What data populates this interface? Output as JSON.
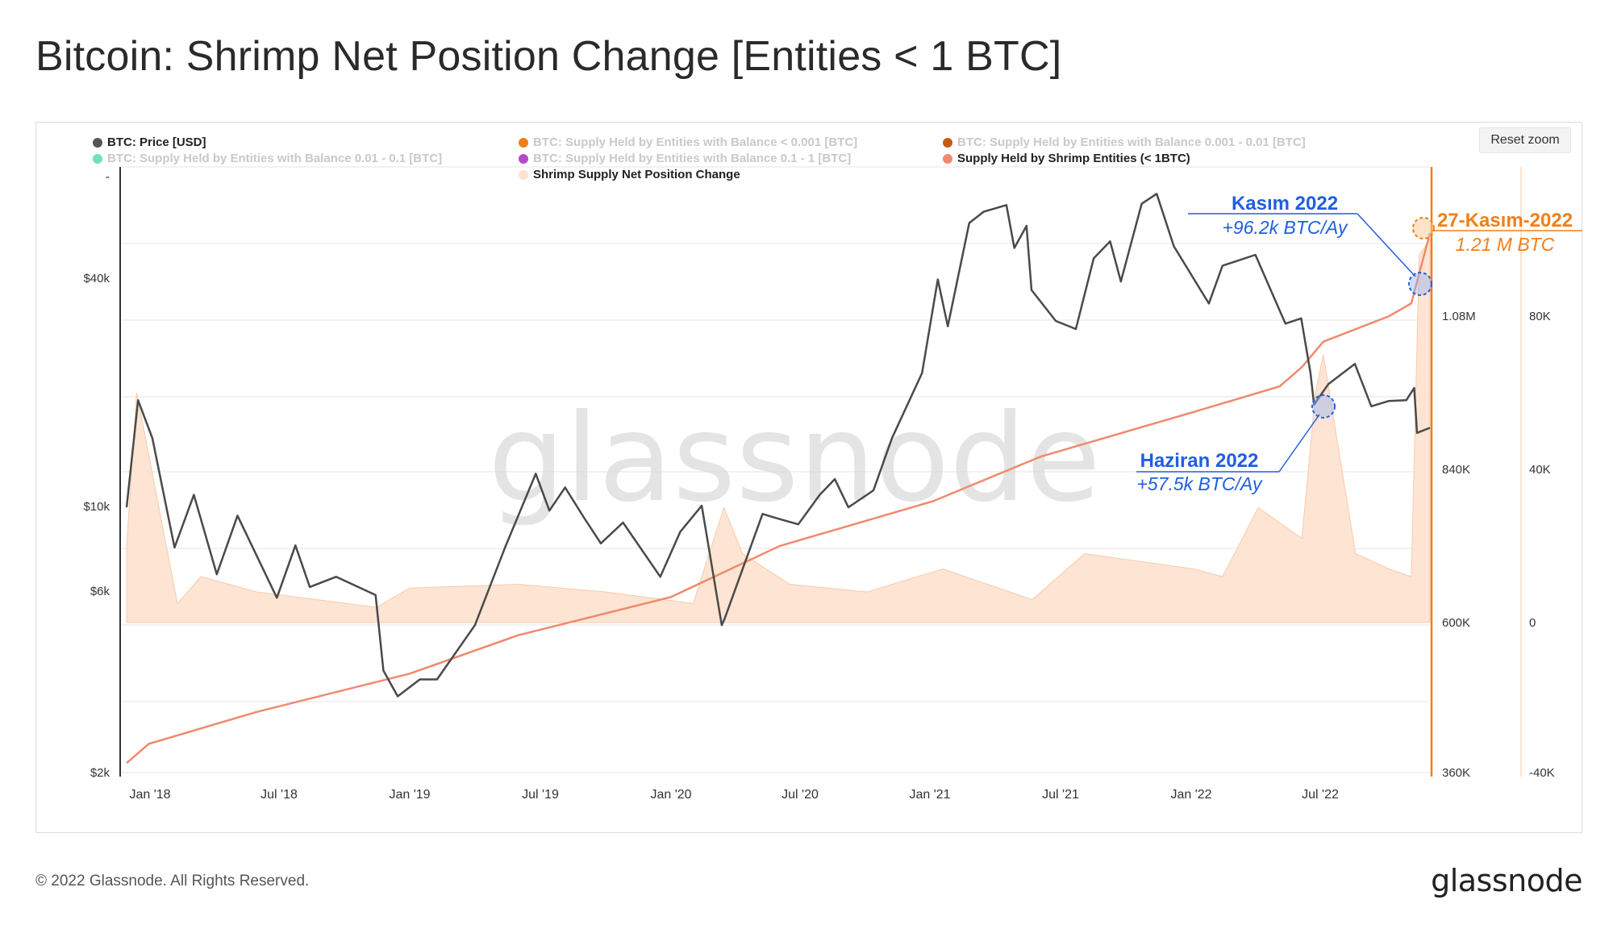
{
  "title": "Bitcoin: Shrimp Net Position Change [Entities < 1 BTC]",
  "footer": {
    "copyright": "© 2022 Glassnode. All Rights Reserved.",
    "logo": "glassnode"
  },
  "watermark": "glassnode",
  "reset_zoom_label": "Reset zoom",
  "legend": [
    {
      "label": "BTC: Price [USD]",
      "color": "#555555",
      "active": true
    },
    {
      "label": "BTC: Supply Held by Entities with Balance < 0.001 [BTC]",
      "color": "#f07f1a",
      "active": false
    },
    {
      "label": "BTC: Supply Held by Entities with Balance 0.001 - 0.01 [BTC]",
      "color": "#c75b12",
      "active": false
    },
    {
      "label": "BTC: Supply Held by Entities with Balance 0.01 - 0.1 [BTC]",
      "color": "#6fe0c3",
      "active": false
    },
    {
      "label": "BTC: Supply Held by Entities with Balance 0.1 - 1 [BTC]",
      "color": "#b44ac9",
      "active": false
    },
    {
      "label": "Supply Held by Shrimp Entities (< 1BTC)",
      "color": "#f08a6e",
      "active": true
    },
    {
      "label": "Shrimp Supply Net Position Change",
      "color": "#fde2cf",
      "active": true
    }
  ],
  "annotations": {
    "kasim": {
      "title": "Kasım 2022",
      "value": "+96.2k BTC/Ay",
      "color": "#1f5fe0"
    },
    "haziran": {
      "title": "Haziran 2022",
      "value": "+57.5k BTC/Ay",
      "color": "#1f5fe0"
    },
    "end": {
      "title": "27-Kasım-2022",
      "value": "1.21 M BTC",
      "color": "#f07f1a"
    }
  },
  "chart_data": {
    "type": "line",
    "x_ticks": [
      "Jan '18",
      "Jul '18",
      "Jan '19",
      "Jul '19",
      "Jan '20",
      "Jul '20",
      "Jan '21",
      "Jul '21",
      "Jan '22",
      "Jul '22"
    ],
    "price_axis": {
      "scale": "log",
      "ticks": [
        "$2k",
        "$6k",
        "$10k",
        "$40k"
      ],
      "tick_values": [
        2000,
        6000,
        10000,
        40000
      ],
      "top_label": "-"
    },
    "supply_axis": {
      "ticks": [
        "360K",
        "600K",
        "840K",
        "1.08M"
      ],
      "tick_values": [
        360000,
        600000,
        840000,
        1080000
      ]
    },
    "change_axis": {
      "ticks": [
        "-40K",
        "0",
        "40K",
        "80K"
      ],
      "tick_values": [
        -40000,
        0,
        40000,
        80000
      ]
    },
    "series": [
      {
        "name": "BTC: Price [USD]",
        "color": "#4a4a4a",
        "axis": "price",
        "x": [
          "2017-12-01",
          "2017-12-17",
          "2018-01-06",
          "2018-02-06",
          "2018-03-05",
          "2018-04-06",
          "2018-05-05",
          "2018-06-29",
          "2018-07-25",
          "2018-08-14",
          "2018-09-20",
          "2018-11-14",
          "2018-11-25",
          "2018-12-15",
          "2019-01-15",
          "2019-02-08",
          "2019-04-02",
          "2019-05-14",
          "2019-06-26",
          "2019-07-15",
          "2019-08-06",
          "2019-09-01",
          "2019-09-25",
          "2019-10-26",
          "2019-12-17",
          "2020-01-14",
          "2020-02-13",
          "2020-03-12",
          "2020-03-16",
          "2020-04-29",
          "2020-05-08",
          "2020-06-01",
          "2020-06-27",
          "2020-07-27",
          "2020-08-17",
          "2020-09-05",
          "2020-10-10",
          "2020-11-05",
          "2020-12-17",
          "2021-01-08",
          "2021-01-22",
          "2021-02-21",
          "2021-03-13",
          "2021-04-14",
          "2021-04-25",
          "2021-05-12",
          "2021-05-19",
          "2021-06-22",
          "2021-07-20",
          "2021-08-14",
          "2021-09-06",
          "2021-09-21",
          "2021-10-20",
          "2021-11-10",
          "2021-12-04",
          "2022-01-22",
          "2022-02-10",
          "2022-03-28",
          "2022-05-09",
          "2022-05-31",
          "2022-06-13",
          "2022-06-18",
          "2022-07-08",
          "2022-08-14",
          "2022-09-06",
          "2022-09-30",
          "2022-10-25",
          "2022-11-05",
          "2022-11-09",
          "2022-11-27"
        ],
        "values": [
          10200,
          19500,
          15500,
          8000,
          11000,
          6800,
          9700,
          5900,
          8100,
          6300,
          6700,
          6000,
          3800,
          3250,
          3600,
          3600,
          5000,
          8000,
          12500,
          10000,
          11500,
          9600,
          8200,
          9300,
          6700,
          8800,
          10300,
          5000,
          5200,
          8800,
          9800,
          9500,
          9200,
          11000,
          12100,
          10200,
          11300,
          15500,
          23000,
          40500,
          30500,
          57000,
          61000,
          63500,
          49000,
          56000,
          38000,
          31500,
          30000,
          46000,
          51000,
          40000,
          64000,
          68000,
          49500,
          35000,
          44000,
          47000,
          31000,
          32000,
          23000,
          19000,
          21500,
          24300,
          18800,
          19400,
          19500,
          21000,
          16000,
          16500
        ]
      },
      {
        "name": "Supply Held by Shrimp Entities (< 1BTC)",
        "color": "#f08a6e",
        "axis": "supply",
        "x": [
          "2017-12-01",
          "2018-01-01",
          "2018-06-01",
          "2019-01-01",
          "2019-06-01",
          "2020-01-01",
          "2020-06-01",
          "2021-01-01",
          "2021-06-01",
          "2022-01-01",
          "2022-05-01",
          "2022-06-01",
          "2022-07-01",
          "2022-10-01",
          "2022-11-01",
          "2022-11-27"
        ],
        "values": [
          380000,
          410000,
          460000,
          520000,
          580000,
          640000,
          720000,
          790000,
          860000,
          930000,
          970000,
          1000000,
          1040000,
          1080000,
          1100000,
          1210000
        ]
      },
      {
        "name": "Shrimp Supply Net Position Change",
        "color": "#fde2cf",
        "axis": "change",
        "type": "area",
        "x": [
          "2017-12-01",
          "2017-12-15",
          "2018-01-05",
          "2018-02-10",
          "2018-03-15",
          "2018-06-01",
          "2018-11-15",
          "2019-01-01",
          "2019-06-01",
          "2019-10-01",
          "2020-02-01",
          "2020-03-15",
          "2020-04-10",
          "2020-06-15",
          "2020-10-01",
          "2021-01-15",
          "2021-05-20",
          "2021-08-01",
          "2022-01-01",
          "2022-02-10",
          "2022-04-01",
          "2022-06-01",
          "2022-06-20",
          "2022-07-01",
          "2022-08-15",
          "2022-10-01",
          "2022-11-01",
          "2022-11-12",
          "2022-11-27"
        ],
        "values": [
          20000,
          60000,
          40000,
          5000,
          12000,
          8000,
          4000,
          9000,
          10000,
          8000,
          5000,
          30000,
          18000,
          10000,
          8000,
          14000,
          6000,
          18000,
          14000,
          12000,
          30000,
          22000,
          60000,
          70000,
          18000,
          14000,
          12000,
          96000,
          100000
        ]
      }
    ]
  }
}
